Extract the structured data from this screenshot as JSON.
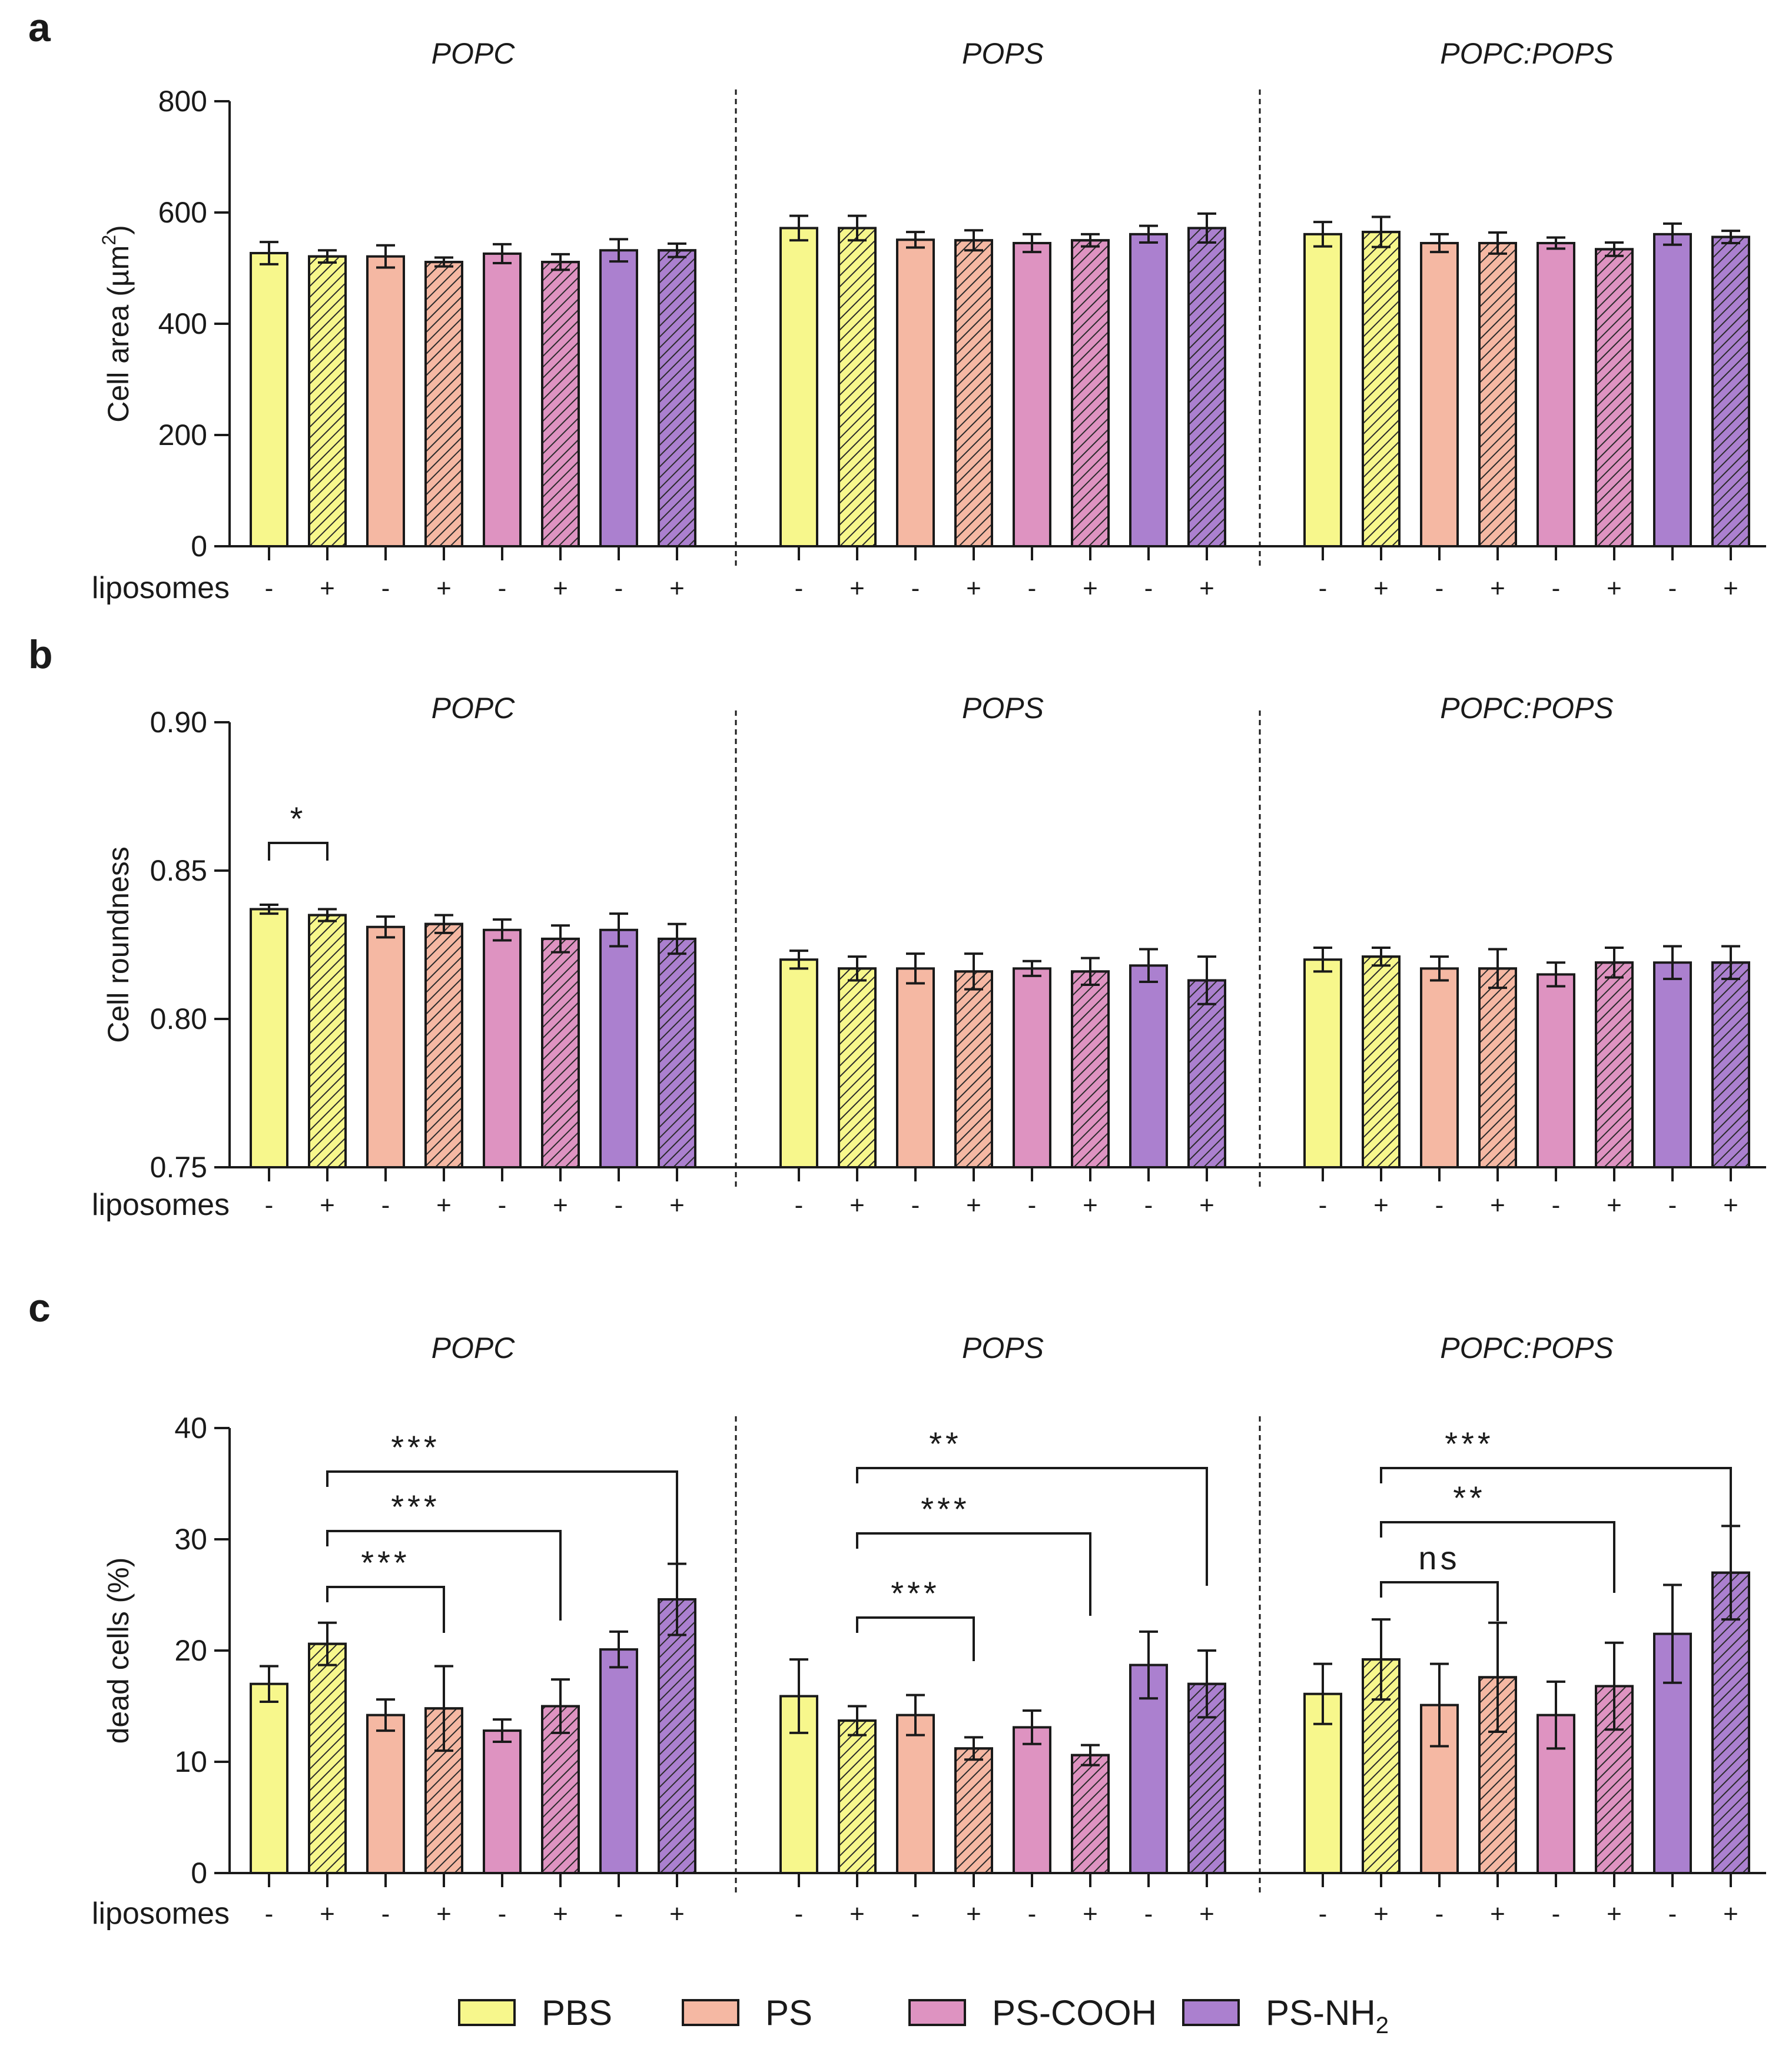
{
  "legend": {
    "items": [
      {
        "label": "PBS",
        "color": "#f7f78c"
      },
      {
        "label": "PS",
        "color": "#f5b8a3"
      },
      {
        "label": "PS-COOH",
        "color": "#de93c1"
      },
      {
        "label": "PS-NH",
        "sub": "2",
        "color": "#ab80cf"
      }
    ]
  },
  "row_label": "liposomes",
  "conditions": [
    {
      "treatment": "PBS",
      "liposomes": "-",
      "color": "#f7f78c",
      "hatched": false
    },
    {
      "treatment": "PBS",
      "liposomes": "+",
      "color": "#f7f78c",
      "hatched": true
    },
    {
      "treatment": "PS",
      "liposomes": "-",
      "color": "#f5b8a3",
      "hatched": false
    },
    {
      "treatment": "PS",
      "liposomes": "+",
      "color": "#f5b8a3",
      "hatched": true
    },
    {
      "treatment": "PS-COOH",
      "liposomes": "-",
      "color": "#de93c1",
      "hatched": false
    },
    {
      "treatment": "PS-COOH",
      "liposomes": "+",
      "color": "#de93c1",
      "hatched": true
    },
    {
      "treatment": "PS-NH2",
      "liposomes": "-",
      "color": "#ab80cf",
      "hatched": false
    },
    {
      "treatment": "PS-NH2",
      "liposomes": "+",
      "color": "#ab80cf",
      "hatched": true
    }
  ],
  "chart_data": [
    {
      "panel": "a",
      "type": "bar",
      "ylabel": "Cell area (µm",
      "ylabel_sup": "2",
      "ylabel_close": ")",
      "ylim": [
        0,
        800
      ],
      "yticks": [
        0,
        200,
        400,
        600,
        800
      ],
      "groups": [
        {
          "title": "POPC",
          "values": [
            527,
            521,
            521,
            511,
            526,
            511,
            532,
            532
          ],
          "errors": [
            20,
            11,
            20,
            8,
            17,
            14,
            20,
            12
          ]
        },
        {
          "title": "POPS",
          "values": [
            572,
            572,
            551,
            550,
            545,
            550,
            561,
            572
          ],
          "errors": [
            22,
            22,
            14,
            18,
            16,
            11,
            15,
            26
          ]
        },
        {
          "title": "POPC:POPS",
          "values": [
            561,
            565,
            545,
            545,
            545,
            534,
            561,
            556
          ],
          "errors": [
            22,
            27,
            16,
            19,
            10,
            12,
            19,
            11
          ]
        }
      ],
      "significance": []
    },
    {
      "panel": "b",
      "type": "bar",
      "ylabel": "Cell roundness",
      "ylim": [
        0.75,
        0.9
      ],
      "yticks": [
        "0.75",
        "0.80",
        "0.85",
        "0.90"
      ],
      "groups": [
        {
          "title": "POPC",
          "values": [
            0.837,
            0.835,
            0.831,
            0.832,
            0.83,
            0.827,
            0.83,
            0.827
          ],
          "errors": [
            0.0015,
            0.002,
            0.0035,
            0.003,
            0.0035,
            0.0045,
            0.0055,
            0.005
          ]
        },
        {
          "title": "POPS",
          "values": [
            0.82,
            0.817,
            0.817,
            0.816,
            0.817,
            0.816,
            0.818,
            0.813
          ],
          "errors": [
            0.003,
            0.004,
            0.005,
            0.006,
            0.0025,
            0.0045,
            0.0055,
            0.008
          ]
        },
        {
          "title": "POPC:POPS",
          "values": [
            0.82,
            0.821,
            0.817,
            0.817,
            0.815,
            0.819,
            0.819,
            0.819
          ],
          "errors": [
            0.004,
            0.003,
            0.004,
            0.0065,
            0.004,
            0.005,
            0.0055,
            0.0055
          ]
        }
      ],
      "significance": [
        {
          "group": 0,
          "from": 0,
          "to": 1,
          "label": "*"
        }
      ]
    },
    {
      "panel": "c",
      "type": "bar",
      "ylabel": "dead cells (%)",
      "ylim": [
        0,
        40
      ],
      "yticks": [
        0,
        10,
        20,
        30,
        40
      ],
      "groups": [
        {
          "title": "POPC",
          "values": [
            17.0,
            20.6,
            14.2,
            14.8,
            12.8,
            15.0,
            20.1,
            24.6
          ],
          "errors": [
            1.6,
            1.9,
            1.4,
            3.8,
            1.0,
            2.4,
            1.6,
            3.2
          ]
        },
        {
          "title": "POPS",
          "values": [
            15.9,
            13.7,
            14.2,
            11.2,
            13.1,
            10.6,
            18.7,
            17.0
          ],
          "errors": [
            3.3,
            1.3,
            1.8,
            1.0,
            1.5,
            0.9,
            3.0,
            3.0
          ]
        },
        {
          "title": "POPC:POPS",
          "values": [
            16.1,
            19.2,
            15.1,
            17.6,
            14.2,
            16.8,
            21.5,
            27.0
          ],
          "errors": [
            2.7,
            3.6,
            3.7,
            4.9,
            3.0,
            3.9,
            4.4,
            4.2
          ]
        }
      ],
      "significance": [
        {
          "group": 0,
          "from": 1,
          "to": 3,
          "label": "***",
          "level": 0
        },
        {
          "group": 0,
          "from": 1,
          "to": 5,
          "label": "***",
          "level": 1
        },
        {
          "group": 0,
          "from": 1,
          "to": 7,
          "label": "***",
          "level": 2
        },
        {
          "group": 1,
          "from": 1,
          "to": 3,
          "label": "***",
          "level": 0
        },
        {
          "group": 1,
          "from": 1,
          "to": 5,
          "label": "***",
          "level": 1
        },
        {
          "group": 1,
          "from": 1,
          "to": 7,
          "label": "**",
          "level": 2
        },
        {
          "group": 2,
          "from": 1,
          "to": 3,
          "label": "ns",
          "level": 0
        },
        {
          "group": 2,
          "from": 1,
          "to": 5,
          "label": "**",
          "level": 1
        },
        {
          "group": 2,
          "from": 1,
          "to": 7,
          "label": "***",
          "level": 2
        }
      ]
    }
  ]
}
